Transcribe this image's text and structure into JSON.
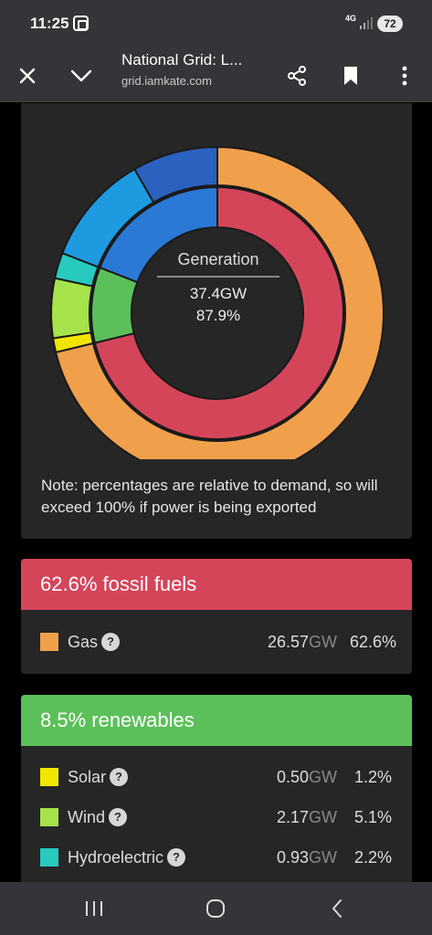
{
  "status_bar": {
    "time": "11:25",
    "network": "4G",
    "battery": "72",
    "icons": [
      "screenshot-icon",
      "signal-icon"
    ]
  },
  "toolbar": {
    "page_title": "National Grid: L...",
    "url": "grid.iamkate.com",
    "icons": [
      "close-icon",
      "chevron-down-icon",
      "share-icon",
      "bookmark-icon",
      "more-vert-icon"
    ]
  },
  "chart_data": {
    "type": "pie",
    "title": "Generation",
    "total_gw": "37.4GW",
    "total_pct": "87.9%",
    "outer_ring": [
      {
        "name": "Gas",
        "value": 62.6,
        "color": "#f0a04b"
      },
      {
        "name": "Solar",
        "value": 1.2,
        "color": "#f2e600"
      },
      {
        "name": "Wind",
        "value": 5.1,
        "color": "#a6e34a"
      },
      {
        "name": "Hydroelectric",
        "value": 2.2,
        "color": "#28c9bf"
      },
      {
        "name": "unlabeled (light blue)",
        "value": 9.5,
        "color": "#1e9be0"
      },
      {
        "name": "unlabeled (dark blue)",
        "value": 7.3,
        "color": "#2b61bf"
      }
    ],
    "inner_ring": [
      {
        "name": "fossil fuels",
        "value": 62.6,
        "color": "#d5455a"
      },
      {
        "name": "renewables",
        "value": 8.5,
        "color": "#5cc05a"
      },
      {
        "name": "unlabeled (blue)",
        "value": 16.8,
        "color": "#2a79d5"
      }
    ]
  },
  "note": "Note: percentages are relative to demand, so will exceed 100% if power is being exported",
  "groups": [
    {
      "header": "62.6% fossil fuels",
      "color": "#d5455a",
      "rows": [
        {
          "label": "Gas",
          "gw": "26.57",
          "unit": "GW",
          "pct": "62.6%",
          "color": "#f0a04b"
        }
      ]
    },
    {
      "header": "8.5% renewables",
      "color": "#5cc05a",
      "rows": [
        {
          "label": "Solar",
          "gw": "0.50",
          "unit": "GW",
          "pct": "1.2%",
          "color": "#f2e600"
        },
        {
          "label": "Wind",
          "gw": "2.17",
          "unit": "GW",
          "pct": "5.1%",
          "color": "#a6e34a"
        },
        {
          "label": "Hydroelectric",
          "gw": "0.93",
          "unit": "GW",
          "pct": "2.2%",
          "color": "#28c9bf"
        }
      ]
    }
  ],
  "help_glyph": "?",
  "nav_bar": {
    "icons": [
      "recent-apps-icon",
      "home-icon",
      "back-icon"
    ]
  }
}
